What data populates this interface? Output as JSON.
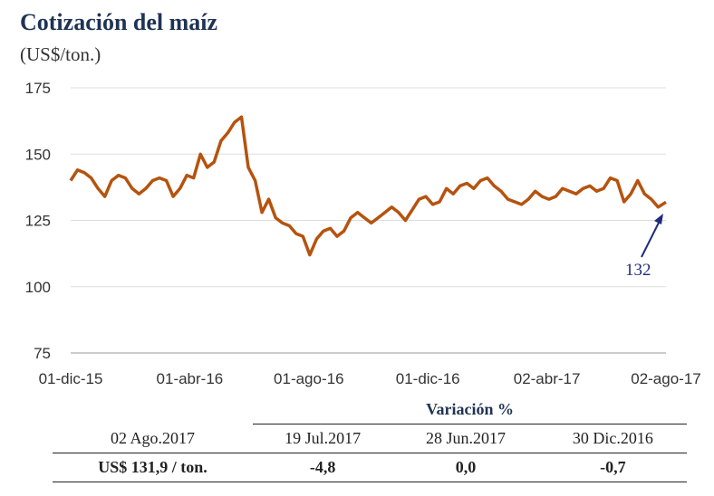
{
  "title": "Cotización del maíz",
  "subtitle": "(US$/ton.)",
  "chart_data": {
    "type": "line",
    "title": "Cotización del maíz",
    "ylabel": "(US$/ton.)",
    "ylim": [
      75,
      175
    ],
    "yticks": [
      "175",
      "150",
      "125",
      "100",
      "75"
    ],
    "xticks": [
      "01-dic-15",
      "01-abr-16",
      "01-ago-16",
      "01-dic-16",
      "02-abr-17",
      "02-ago-17"
    ],
    "grid": "horizontal",
    "color": "#b5530f",
    "series": [
      {
        "x": [
          "2015-12-01",
          "2015-12-08",
          "2015-12-15",
          "2015-12-22",
          "2015-12-29",
          "2016-01-05",
          "2016-01-12",
          "2016-01-19",
          "2016-01-26",
          "2016-02-02",
          "2016-02-09",
          "2016-02-16",
          "2016-02-23",
          "2016-03-01",
          "2016-03-08",
          "2016-03-15",
          "2016-03-22",
          "2016-03-29",
          "2016-04-05",
          "2016-04-12",
          "2016-04-19",
          "2016-04-26",
          "2016-05-03",
          "2016-05-10",
          "2016-05-17",
          "2016-05-24",
          "2016-05-31",
          "2016-06-07",
          "2016-06-14",
          "2016-06-21",
          "2016-06-28",
          "2016-07-05",
          "2016-07-12",
          "2016-07-19",
          "2016-07-26",
          "2016-08-02",
          "2016-08-09",
          "2016-08-16",
          "2016-08-23",
          "2016-08-30",
          "2016-09-06",
          "2016-09-13",
          "2016-09-20",
          "2016-09-27",
          "2016-10-04",
          "2016-10-11",
          "2016-10-18",
          "2016-10-25",
          "2016-11-01",
          "2016-11-08",
          "2016-11-15",
          "2016-11-22",
          "2016-11-29",
          "2016-12-06",
          "2016-12-13",
          "2016-12-20",
          "2016-12-27",
          "2017-01-03",
          "2017-01-10",
          "2017-01-17",
          "2017-01-24",
          "2017-01-31",
          "2017-02-07",
          "2017-02-14",
          "2017-02-21",
          "2017-02-28",
          "2017-03-07",
          "2017-03-14",
          "2017-03-21",
          "2017-03-28",
          "2017-04-04",
          "2017-04-11",
          "2017-04-18",
          "2017-04-25",
          "2017-05-02",
          "2017-05-09",
          "2017-05-16",
          "2017-05-23",
          "2017-05-30",
          "2017-06-06",
          "2017-06-13",
          "2017-06-20",
          "2017-06-27",
          "2017-07-04",
          "2017-07-11",
          "2017-07-18",
          "2017-07-25",
          "2017-08-02"
        ],
        "values": [
          140,
          144,
          143,
          141,
          137,
          134,
          140,
          142,
          141,
          137,
          135,
          137,
          140,
          141,
          140,
          134,
          137,
          142,
          141,
          150,
          145,
          147,
          155,
          158,
          162,
          164,
          145,
          140,
          128,
          133,
          126,
          124,
          123,
          120,
          119,
          112,
          118,
          121,
          122,
          119,
          121,
          126,
          128,
          126,
          124,
          126,
          128,
          130,
          128,
          125,
          129,
          133,
          134,
          131,
          132,
          137,
          135,
          138,
          139,
          137,
          140,
          141,
          138,
          136,
          133,
          132,
          131,
          133,
          136,
          134,
          133,
          134,
          137,
          136,
          135,
          137,
          138,
          136,
          137,
          141,
          140,
          132,
          135,
          140,
          135,
          133,
          130,
          131.9
        ]
      }
    ],
    "annotation": "132"
  },
  "table": {
    "header": "Variación %",
    "dates": [
      "02 Ago.2017",
      "19 Jul.2017",
      "28 Jun.2017",
      "30 Dic.2016"
    ],
    "values": [
      "US$ 131,9 / ton.",
      "-4,8",
      "0,0",
      "-0,7"
    ]
  }
}
